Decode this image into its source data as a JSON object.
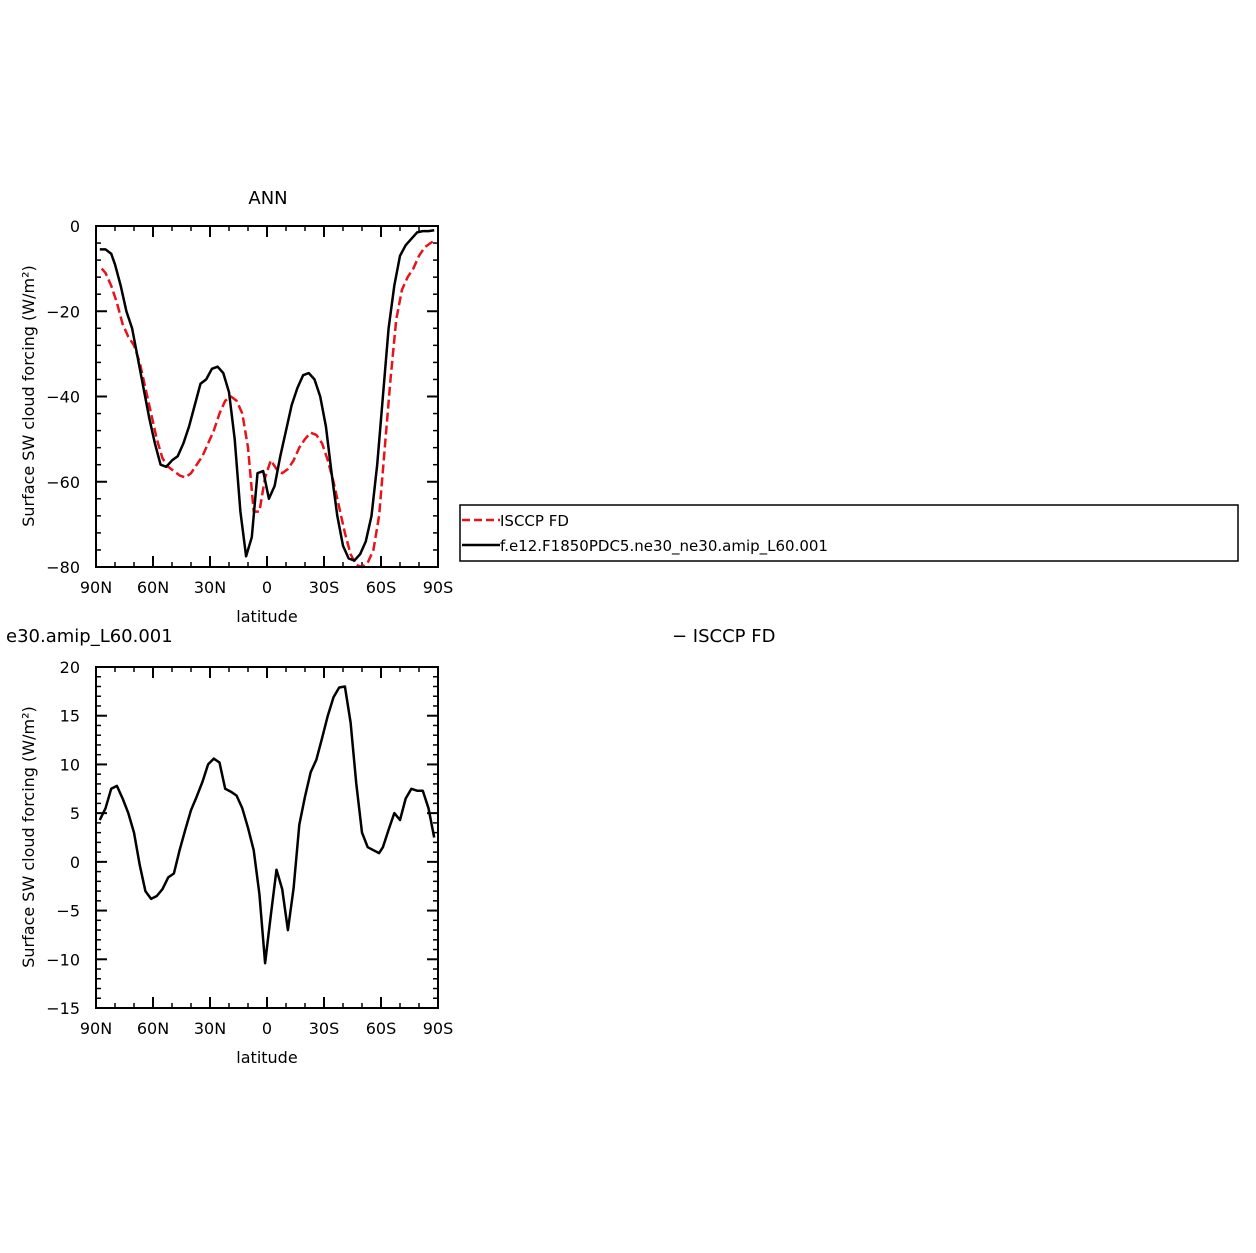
{
  "colors": {
    "obs": "#e8121a",
    "model": "#000000"
  },
  "chart_data": [
    {
      "type": "line",
      "title": "ANN",
      "xlabel": "latitude",
      "ylabel": "Surface SW cloud forcing (W/m²)",
      "xlim": [
        90,
        -90
      ],
      "ylim": [
        -80,
        0
      ],
      "xticks": [
        {
          "value": 90,
          "label": "90N"
        },
        {
          "value": 60,
          "label": "60N"
        },
        {
          "value": 30,
          "label": "30N"
        },
        {
          "value": 0,
          "label": "0"
        },
        {
          "value": -30,
          "label": "30S"
        },
        {
          "value": -60,
          "label": "60S"
        },
        {
          "value": -90,
          "label": "90S"
        }
      ],
      "yticks": [
        {
          "value": 0,
          "label": "0"
        },
        {
          "value": -20,
          "label": "−20"
        },
        {
          "value": -40,
          "label": "−40"
        },
        {
          "value": -60,
          "label": "−60"
        },
        {
          "value": -80,
          "label": "−80"
        }
      ],
      "legend": "right",
      "series": [
        {
          "name": "ISCCP FD",
          "style": "dashed",
          "color": "#e8121a",
          "x": [
            87,
            85,
            82,
            79,
            76,
            73,
            70,
            67,
            64,
            61,
            58,
            55,
            52,
            49,
            46,
            43,
            40,
            37,
            34,
            31,
            28,
            25,
            22,
            19,
            16,
            13,
            10,
            7,
            4,
            1,
            -2,
            -5,
            -8,
            -11,
            -14,
            -17,
            -20,
            -23,
            -26,
            -29,
            -32,
            -35,
            -38,
            -41,
            -44,
            -47,
            -50,
            -53,
            -56,
            -59,
            -62,
            -65,
            -68,
            -71,
            -74,
            -77,
            -80,
            -83,
            -86,
            -88
          ],
          "y": [
            -10,
            -11,
            -14,
            -18,
            -23,
            -26,
            -28,
            -32,
            -38,
            -44,
            -50,
            -54.5,
            -56.5,
            -57.5,
            -58.5,
            -59,
            -58,
            -56,
            -54,
            -51,
            -48,
            -44,
            -41,
            -40,
            -41,
            -44,
            -52,
            -67,
            -67,
            -59,
            -55,
            -57,
            -58,
            -57,
            -55,
            -52,
            -50,
            -48.5,
            -49,
            -51,
            -55,
            -60,
            -66,
            -72,
            -77,
            -79.5,
            -80,
            -79,
            -76,
            -68,
            -52,
            -36,
            -22,
            -15,
            -12,
            -10,
            -7,
            -5,
            -4,
            -3.5
          ]
        },
        {
          "name": "f.e12.F1850PDC5.ne30_ne30.amip_L60.001",
          "style": "solid",
          "color": "#000000",
          "x": [
            88,
            85,
            82,
            80,
            77,
            74,
            71,
            68,
            65,
            62,
            59,
            56,
            53,
            50,
            47,
            44,
            41,
            38,
            35,
            32,
            29,
            26,
            23,
            20,
            17,
            14,
            11,
            8,
            5,
            2,
            -1,
            -4,
            -7,
            -10,
            -13,
            -16,
            -19,
            -22,
            -25,
            -28,
            -31,
            -34,
            -37,
            -40,
            -43,
            -46,
            -49,
            -52,
            -55,
            -58,
            -61,
            -64,
            -67,
            -70,
            -73,
            -76,
            -79,
            -82,
            -85,
            -88
          ],
          "y": [
            -5.5,
            -5.5,
            -6.5,
            -9,
            -14,
            -20,
            -24,
            -31,
            -38,
            -45,
            -51,
            -56,
            -56.5,
            -55,
            -54,
            -51,
            -47,
            -42,
            -37,
            -36,
            -33.5,
            -33,
            -34.5,
            -39,
            -50,
            -67,
            -77.5,
            -73,
            -58,
            -57.5,
            -64,
            -61,
            -54,
            -48,
            -42,
            -38,
            -35,
            -34.5,
            -36,
            -40,
            -47,
            -58,
            -68,
            -75,
            -78,
            -78.5,
            -77,
            -74,
            -68,
            -56,
            -40,
            -24,
            -14,
            -7,
            -4.5,
            -3,
            -1.5,
            -1.2,
            -1.2,
            -1
          ]
        }
      ]
    },
    {
      "type": "line",
      "title": "e30.amip_L60.001 - ISCCP FD",
      "title_left": "e30.amip_L60.001",
      "title_right": "− ISCCP FD",
      "xlabel": "latitude",
      "ylabel": "Surface SW cloud forcing (W/m²)",
      "xlim": [
        90,
        -90
      ],
      "ylim": [
        -15,
        20
      ],
      "xticks": [
        {
          "value": 90,
          "label": "90N"
        },
        {
          "value": 60,
          "label": "60N"
        },
        {
          "value": 30,
          "label": "30N"
        },
        {
          "value": 0,
          "label": "0"
        },
        {
          "value": -30,
          "label": "30S"
        },
        {
          "value": -60,
          "label": "60S"
        },
        {
          "value": -90,
          "label": "90S"
        }
      ],
      "yticks": [
        {
          "value": 20,
          "label": "20"
        },
        {
          "value": 15,
          "label": "15"
        },
        {
          "value": 10,
          "label": "10"
        },
        {
          "value": 5,
          "label": "5"
        },
        {
          "value": 0,
          "label": "0"
        },
        {
          "value": -5,
          "label": "−5"
        },
        {
          "value": -10,
          "label": "−10"
        },
        {
          "value": -15,
          "label": "−15"
        }
      ],
      "series": [
        {
          "name": "",
          "style": "solid",
          "color": "#000000",
          "x": [
            88,
            85,
            82,
            79,
            76,
            73,
            70,
            67,
            64,
            61,
            58,
            55,
            52,
            49,
            46,
            43,
            40,
            37,
            34,
            31,
            28,
            25,
            22,
            19,
            16,
            13,
            10,
            7,
            4,
            1,
            -2,
            -5,
            -8,
            -11,
            -14,
            -17,
            -20,
            -23,
            -26,
            -29,
            -32,
            -35,
            -38,
            -41,
            -44,
            -47,
            -50,
            -53,
            -56,
            -59,
            -61,
            -64,
            -67,
            -70,
            -73,
            -76,
            -79,
            -82,
            -85,
            -88
          ],
          "y": [
            4.3,
            5.5,
            7.5,
            7.8,
            6.5,
            5,
            3,
            -0.3,
            -3,
            -3.8,
            -3.5,
            -2.8,
            -1.6,
            -1.2,
            1.2,
            3.3,
            5.3,
            6.7,
            8.2,
            10,
            10.6,
            10.2,
            7.5,
            7.2,
            6.8,
            5.5,
            3.5,
            1.2,
            -3.3,
            -10.4,
            -5.5,
            -0.8,
            -2.8,
            -7,
            -2.7,
            3.8,
            6.7,
            9.2,
            10.5,
            12.7,
            15,
            16.9,
            17.9,
            18,
            14.3,
            8,
            3,
            1.5,
            1.2,
            0.9,
            1.5,
            3.3,
            5,
            4.3,
            6.5,
            7.5,
            7.3,
            7.3,
            5.5,
            2.5
          ]
        }
      ]
    }
  ]
}
